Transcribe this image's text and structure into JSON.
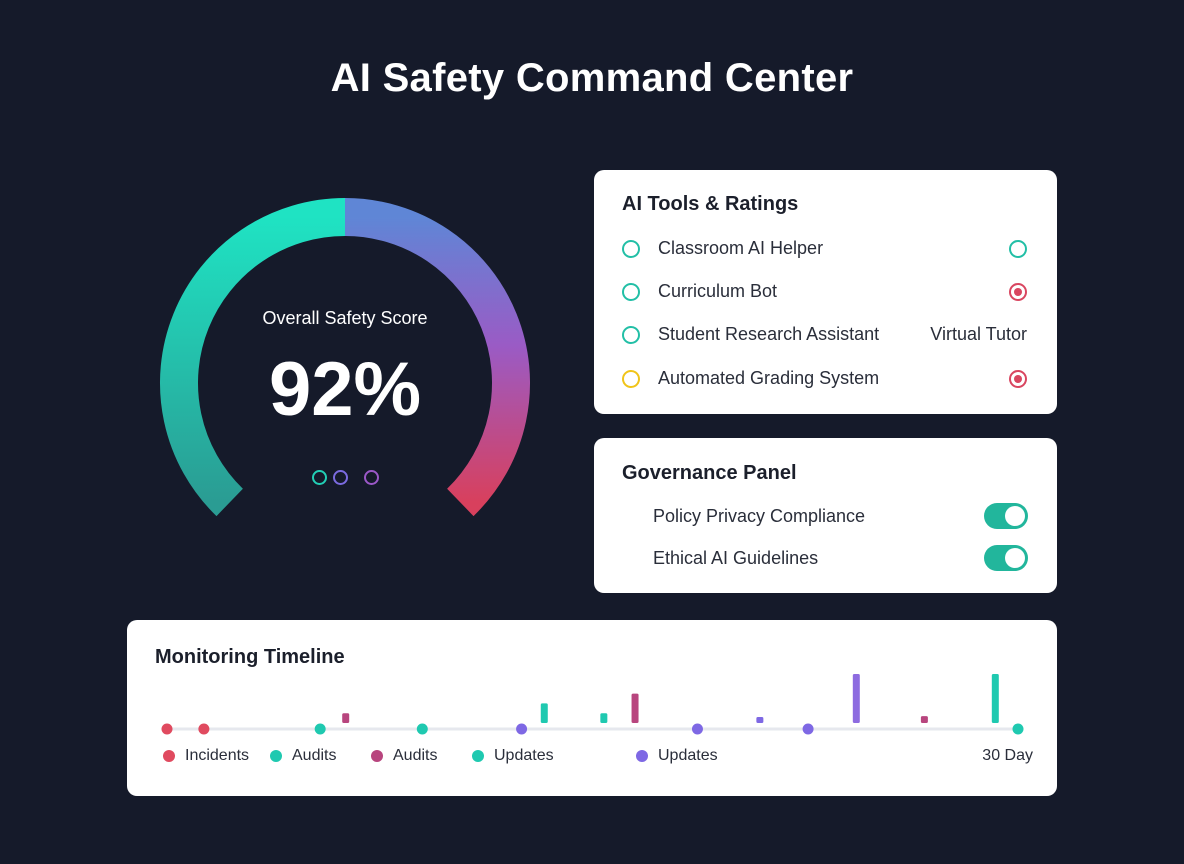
{
  "title": "AI Safety Command Center",
  "gauge": {
    "label": "Overall Safety Score",
    "value_text": "92%",
    "value": 92,
    "dot_colors": [
      "#22cfb6",
      "#7b6be0",
      "#9b58c8"
    ],
    "gradient_colors": [
      "#1fe3c3",
      "#6b7fd6",
      "#9a5bc5",
      "#d8405d"
    ]
  },
  "tools": {
    "title": "AI Tools & Ratings",
    "items": [
      {
        "name": "Classroom AI Helper",
        "ring_color": "#22bfa6",
        "status": "ok",
        "status_color": "#22bfa6"
      },
      {
        "name": "Curriculum Bot",
        "ring_color": "#22bfa6",
        "status": "alert",
        "status_color": "#d94660"
      },
      {
        "name": "Student Research Assistant",
        "ring_color": "#22bfa6",
        "status_text": "Virtual Tutor"
      },
      {
        "name": "Automated Grading System",
        "ring_color": "#f0c419",
        "status": "alert",
        "status_color": "#d94660"
      }
    ]
  },
  "governance": {
    "title": "Governance Panel",
    "items": [
      {
        "label": "Policy Privacy Compliance",
        "enabled": true
      },
      {
        "label": "Ethical AI Guidelines",
        "enabled": true
      }
    ]
  },
  "timeline": {
    "title": "Monitoring Timeline",
    "range_label": "30 Day",
    "legend": [
      {
        "label": "Incidents",
        "color": "#e04a5f"
      },
      {
        "label": "Audits",
        "color": "#1fc9b0"
      },
      {
        "label": "Audits",
        "color": "#b8457e"
      },
      {
        "label": "Updates",
        "color": "#1fc9b0"
      },
      {
        "label": "Updates",
        "color": "#7e68e4"
      }
    ],
    "events": [
      {
        "day": 0.0,
        "type": "dot",
        "color": "#e04a5f"
      },
      {
        "day": 1.3,
        "type": "dot",
        "color": "#e04a5f"
      },
      {
        "day": 5.4,
        "type": "dot",
        "color": "#1fc9b0"
      },
      {
        "day": 6.3,
        "type": "bar",
        "height": 1,
        "color": "#b8457e"
      },
      {
        "day": 9.0,
        "type": "dot",
        "color": "#1fc9b0"
      },
      {
        "day": 12.5,
        "type": "dot",
        "color": "#7e68e4"
      },
      {
        "day": 13.3,
        "type": "bar",
        "height": 2,
        "color": "#1fc9b0"
      },
      {
        "day": 15.4,
        "type": "bar",
        "height": 1,
        "color": "#1fc9b0"
      },
      {
        "day": 16.5,
        "type": "bar",
        "height": 3,
        "color": "#b8457e"
      },
      {
        "day": 18.7,
        "type": "dot",
        "color": "#7e68e4"
      },
      {
        "day": 20.9,
        "type": "bar",
        "height": 0.5,
        "color": "#7e68e4"
      },
      {
        "day": 22.6,
        "type": "dot",
        "color": "#7e68e4"
      },
      {
        "day": 24.3,
        "type": "bar",
        "height": 5,
        "color": "#8d6be0"
      },
      {
        "day": 26.7,
        "type": "bar",
        "height": 0.7,
        "color": "#b8457e"
      },
      {
        "day": 29.2,
        "type": "bar",
        "height": 5,
        "color": "#1fc9b0"
      },
      {
        "day": 30.0,
        "type": "dot",
        "color": "#1fc9b0"
      }
    ],
    "day_max": 30,
    "height_max": 5
  }
}
